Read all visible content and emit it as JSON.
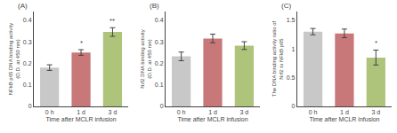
{
  "chart_data": [
    {
      "type": "bar",
      "title": "(A)",
      "categories": [
        "0 h",
        "1 d",
        "3 d"
      ],
      "values": [
        0.18,
        0.25,
        0.345
      ],
      "errors": [
        0.013,
        0.013,
        0.02
      ],
      "colors": [
        "#c8c8c8",
        "#c87878",
        "#adc47a"
      ],
      "ylabel": "NFkB p65 DNA binding activity\n(O.D. at 450 nm)",
      "xlabel": "Time after MCLR infusion",
      "ylim": [
        0,
        0.44
      ],
      "yticks": [
        0,
        0.1,
        0.2,
        0.3,
        0.4
      ],
      "annotations": [
        {
          "category": "1 d",
          "text": "*"
        },
        {
          "category": "3 d",
          "text": "**"
        }
      ],
      "grid": false
    },
    {
      "type": "bar",
      "title": "(B)",
      "categories": [
        "0 h",
        "1 d",
        "3 d"
      ],
      "values": [
        0.232,
        0.315,
        0.282
      ],
      "errors": [
        0.02,
        0.02,
        0.018
      ],
      "colors": [
        "#c8c8c8",
        "#c87878",
        "#adc47a"
      ],
      "ylabel": "Nrf2 DNA binding activity\n(O.D. at 450 nm)",
      "xlabel": "Time after MCLR infusion",
      "ylim": [
        0,
        0.44
      ],
      "yticks": [
        0,
        0.1,
        0.2,
        0.3,
        0.4
      ],
      "grid": false
    },
    {
      "type": "bar",
      "title": "(C)",
      "categories": [
        "0 h",
        "1 d",
        "3 d"
      ],
      "values": [
        1.3,
        1.27,
        0.85
      ],
      "errors": [
        0.055,
        0.075,
        0.13
      ],
      "colors": [
        "#c8c8c8",
        "#c87878",
        "#adc47a"
      ],
      "ylabel": "The DNA binding activity ratio of\nNrf2 to NFkB p65",
      "xlabel": "Time after MCLR infusion",
      "ylim": [
        0,
        1.65
      ],
      "yticks": [
        0,
        0.5,
        1.0,
        1.5
      ],
      "annotations": [
        {
          "category": "3 d",
          "text": "*"
        }
      ],
      "grid": false
    }
  ]
}
